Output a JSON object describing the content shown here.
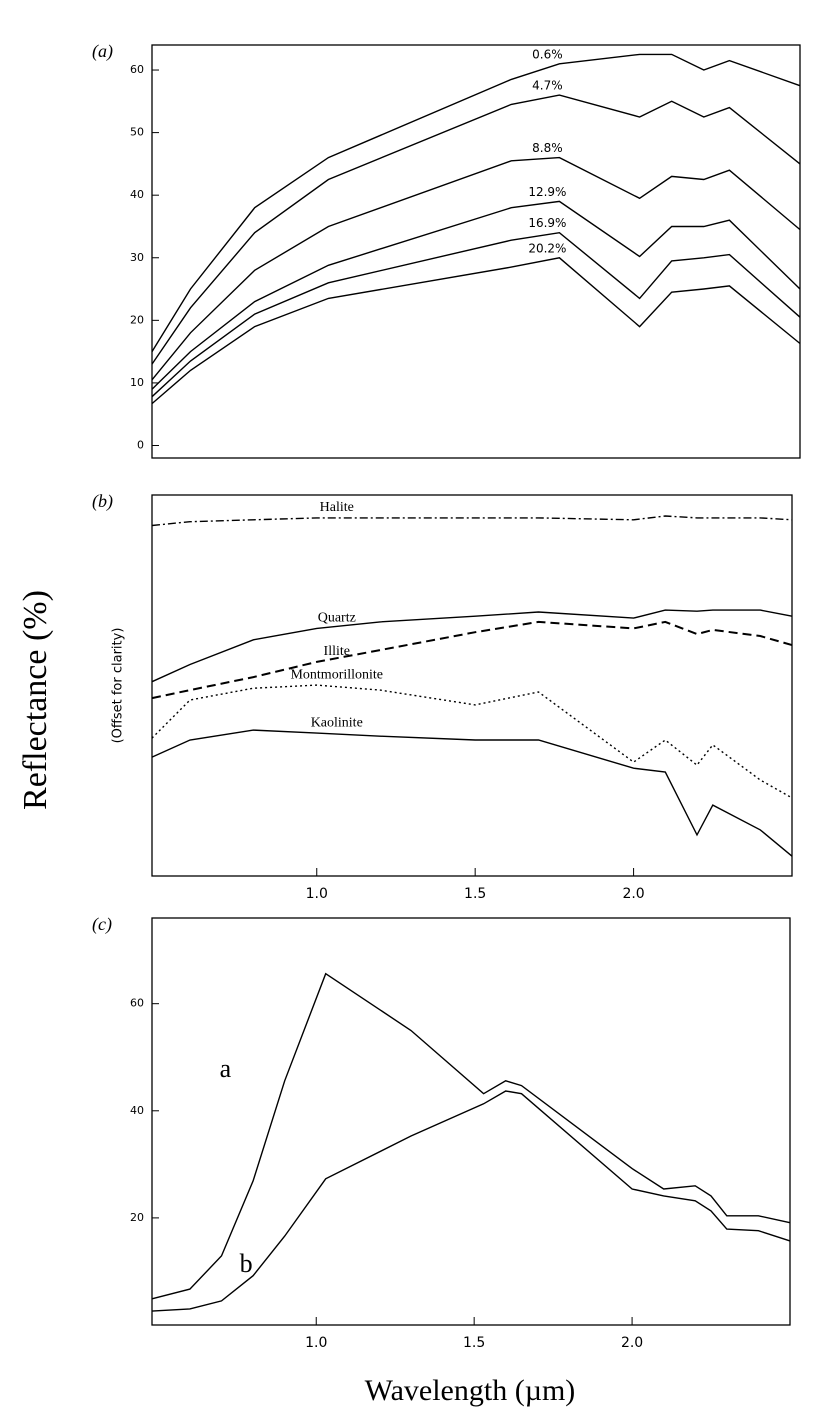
{
  "y_label": "Reflectance (%)",
  "x_label": "Wavelength (µm)",
  "chart_data": [
    {
      "type": "line",
      "label": "(a)",
      "x": [
        0.48,
        0.6,
        0.8,
        1.03,
        1.6,
        1.75,
        2.0,
        2.1,
        2.2,
        2.28,
        2.5
      ],
      "xlim": [
        0.48,
        2.5
      ],
      "ylim": [
        -2,
        64
      ],
      "yticks": [
        0,
        10,
        20,
        30,
        40,
        50,
        60
      ],
      "series": [
        {
          "name": "0.6%",
          "color": "#000",
          "dash": "solid",
          "values": [
            15,
            25,
            38,
            46,
            58.5,
            61,
            62.5,
            62.5,
            60,
            61.5,
            57.5
          ]
        },
        {
          "name": "4.7%",
          "color": "#000",
          "dash": "solid",
          "values": [
            13,
            22,
            34,
            42.5,
            54.5,
            56,
            52.5,
            55,
            52.5,
            54,
            45
          ]
        },
        {
          "name": "8.8%",
          "color": "#000",
          "dash": "solid",
          "values": [
            10.5,
            18,
            28,
            35,
            45.5,
            46,
            39.5,
            43,
            42.5,
            44,
            34.5
          ]
        },
        {
          "name": "12.9%",
          "color": "#000",
          "dash": "solid",
          "values": [
            9,
            15,
            23,
            28.8,
            38,
            39,
            30.2,
            35,
            35,
            36,
            25
          ]
        },
        {
          "name": "16.9%",
          "color": "#000",
          "dash": "solid",
          "values": [
            7.8,
            13.5,
            21,
            26,
            32.8,
            34,
            23.5,
            29.5,
            30,
            30.5,
            20.5
          ]
        },
        {
          "name": "20.2%",
          "color": "#000",
          "dash": "solid",
          "values": [
            6.7,
            12,
            19,
            23.5,
            28.5,
            30,
            19,
            24.5,
            25,
            25.5,
            16.3
          ]
        }
      ]
    },
    {
      "type": "line",
      "label": "(b)",
      "ylabel": "(Offset for clarity)",
      "x": [
        0.48,
        0.6,
        0.8,
        1.0,
        1.2,
        1.5,
        1.7,
        2.0,
        2.1,
        2.2,
        2.25,
        2.4,
        2.5
      ],
      "xlim": [
        0.48,
        2.5
      ],
      "ylim": [
        0,
        100
      ],
      "xticks": [
        {
          "value": 1.0,
          "label": "1.0"
        },
        {
          "value": 1.5,
          "label": "1.5"
        },
        {
          "value": 2.0,
          "label": "2.0"
        }
      ],
      "series": [
        {
          "name": "Halite",
          "color": "#000",
          "dash": "dashdot",
          "values": [
            92,
            93,
            93.5,
            94,
            94,
            94,
            94,
            93.5,
            94.5,
            94,
            94,
            94,
            93.5
          ]
        },
        {
          "name": "Quartz",
          "color": "#000",
          "dash": "solid",
          "values": [
            51,
            55.5,
            62,
            65,
            66.7,
            68.2,
            69.3,
            67.7,
            69.8,
            69.5,
            69.8,
            69.8,
            68.2
          ]
        },
        {
          "name": "Illite",
          "color": "#000",
          "dash": "dashed",
          "values": [
            46.7,
            48.8,
            52.2,
            56.2,
            59.3,
            64,
            66.7,
            65,
            66.7,
            63.5,
            64.6,
            63,
            60.6
          ]
        },
        {
          "name": "Montmorillonite",
          "color": "#000",
          "dash": "dotted",
          "values": [
            36.2,
            46.2,
            49.3,
            50.1,
            48.8,
            44.9,
            48.3,
            29.9,
            35.7,
            29.1,
            34.4,
            25.2,
            20.5
          ]
        },
        {
          "name": "Kaolinite",
          "color": "#000",
          "dash": "solid",
          "values": [
            31.2,
            35.7,
            38.3,
            37.5,
            36.7,
            35.7,
            35.7,
            28.3,
            27.3,
            10.8,
            18.6,
            12.1,
            5.2
          ]
        }
      ]
    },
    {
      "type": "line",
      "label": "(c)",
      "x": [
        0.48,
        0.6,
        0.7,
        0.8,
        0.9,
        1.03,
        1.3,
        1.53,
        1.6,
        1.65,
        2.0,
        2.1,
        2.2,
        2.25,
        2.3,
        2.4,
        2.5
      ],
      "xlim": [
        0.48,
        2.5
      ],
      "ylim": [
        0,
        76
      ],
      "yticks": [
        20,
        40,
        60
      ],
      "xticks": [
        {
          "value": 1.0,
          "label": "1.0"
        },
        {
          "value": 1.5,
          "label": "1.5"
        },
        {
          "value": 2.0,
          "label": "2.0"
        }
      ],
      "series": [
        {
          "name": "a",
          "color": "#000",
          "dash": "solid",
          "values": [
            4.9,
            6.7,
            12.9,
            26.9,
            45.6,
            65.6,
            55,
            43.2,
            45.6,
            44.7,
            29.2,
            25.4,
            26,
            24.1,
            20.4,
            20.4,
            19.1
          ]
        },
        {
          "name": "b",
          "color": "#000",
          "dash": "solid",
          "values": [
            2.6,
            3,
            4.5,
            9.2,
            16.6,
            27.3,
            35.3,
            41.3,
            43.7,
            43.2,
            25.4,
            24.1,
            23.2,
            21.3,
            17.9,
            17.6,
            15.7
          ]
        }
      ]
    }
  ]
}
